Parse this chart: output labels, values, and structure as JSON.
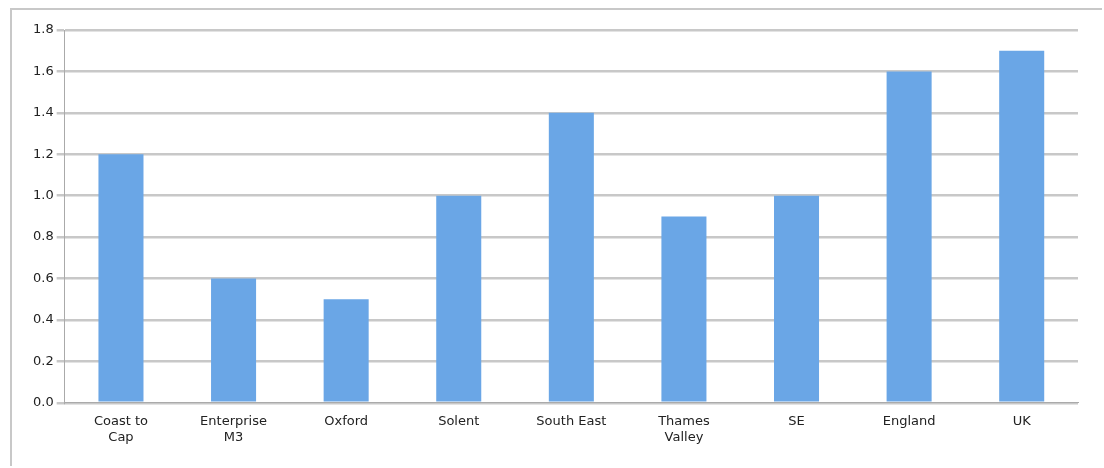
{
  "chart_data": {
    "type": "bar",
    "categories": [
      "Coast to Cap",
      "Enterprise M3",
      "Oxford",
      "Solent",
      "South East",
      "Thames Valley",
      "SE",
      "England",
      "UK"
    ],
    "values": [
      1.2,
      0.6,
      0.5,
      1.0,
      1.4,
      0.9,
      1.0,
      1.6,
      1.7
    ],
    "color": "#6aa6e6",
    "ylim": [
      0,
      1.8
    ],
    "yticks": [
      {
        "value": 0,
        "label": "0.0"
      },
      0.2,
      0.4,
      0.6,
      0.8,
      {
        "value": 1,
        "label": "1.0"
      },
      1.2,
      1.4,
      1.6,
      1.8
    ],
    "grid": "y",
    "legend": false
  }
}
